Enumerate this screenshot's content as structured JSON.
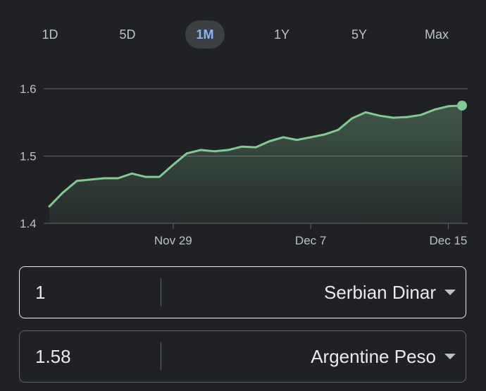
{
  "tabs": [
    {
      "label": "1D"
    },
    {
      "label": "5D"
    },
    {
      "label": "1M",
      "active": true
    },
    {
      "label": "1Y"
    },
    {
      "label": "5Y"
    },
    {
      "label": "Max"
    }
  ],
  "colors": {
    "line": "#81c995",
    "grid": "#5f6368",
    "active_tab": "#8ab4f8",
    "background": "#202124"
  },
  "chart_data": {
    "type": "area",
    "ylim": [
      1.4,
      1.6
    ],
    "yticks": [
      1.6,
      1.5,
      1.4
    ],
    "xticks": [
      "Nov 29",
      "Dec 7",
      "Dec 15"
    ],
    "xtick_index": [
      9,
      19,
      29
    ],
    "grid": true,
    "values": [
      1.425,
      1.446,
      1.463,
      1.465,
      1.467,
      1.467,
      1.474,
      1.469,
      1.469,
      1.487,
      1.504,
      1.509,
      1.507,
      1.509,
      1.514,
      1.513,
      1.522,
      1.528,
      1.524,
      1.528,
      1.532,
      1.539,
      1.556,
      1.565,
      1.56,
      1.557,
      1.558,
      1.561,
      1.569,
      1.574,
      1.575
    ]
  },
  "converter": {
    "from": {
      "amount": "1",
      "currency": "Serbian Dinar"
    },
    "to": {
      "amount": "1.58",
      "currency": "Argentine Peso"
    }
  }
}
